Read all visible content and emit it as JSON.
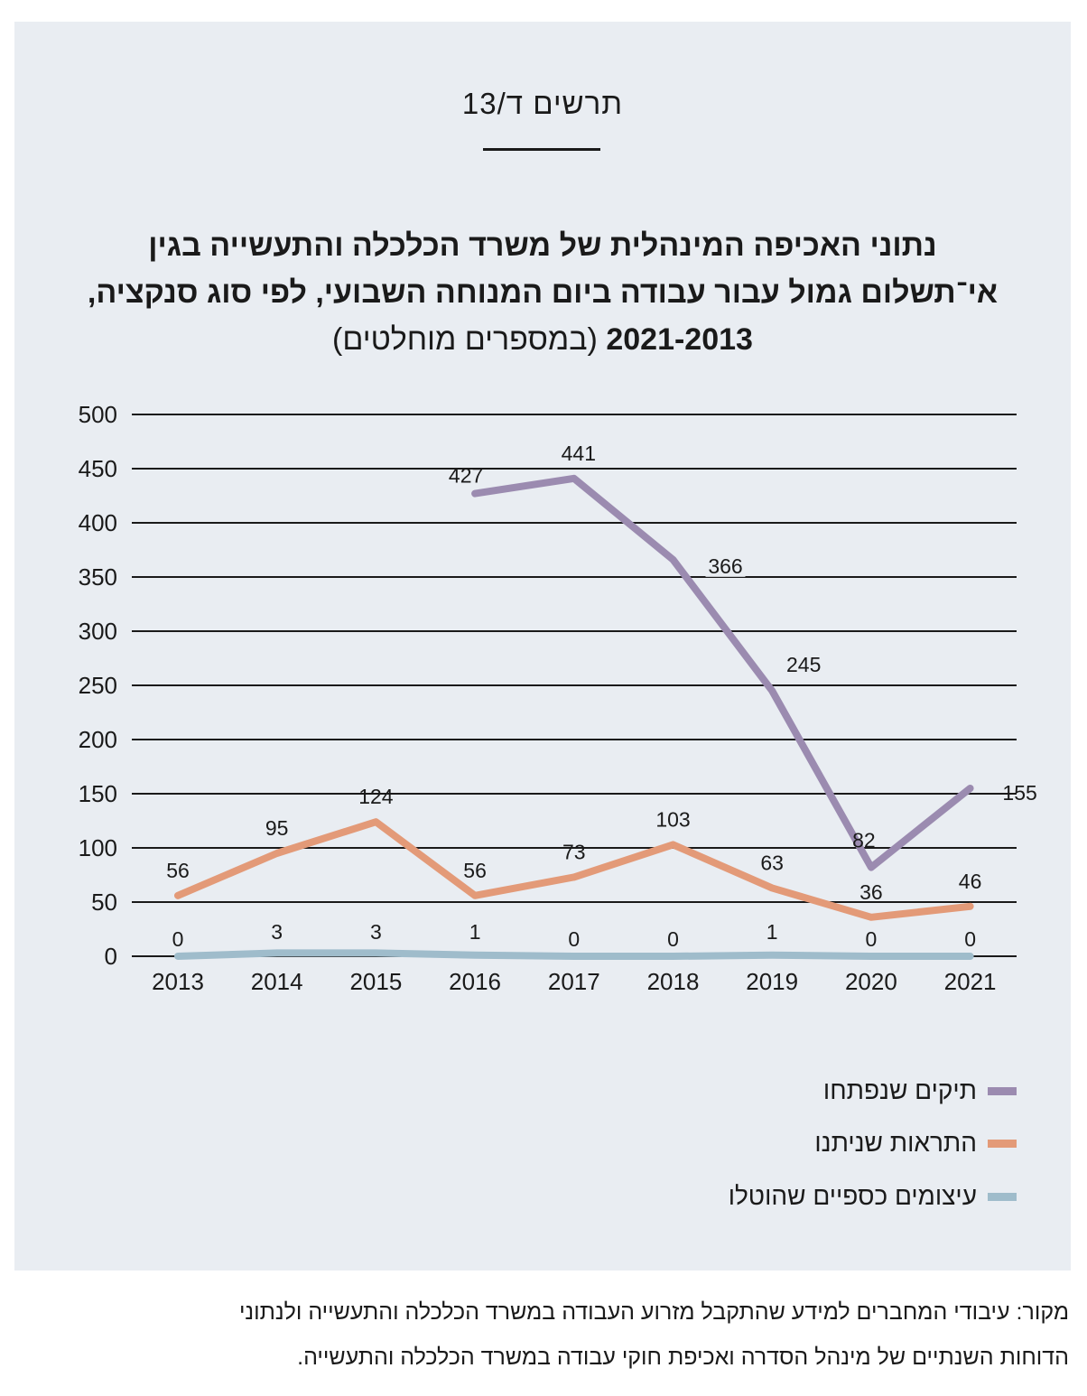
{
  "figure_label": "תרשים ד/13",
  "title": {
    "line1": "נתוני האכיפה המינהלית של משרד הכלכלה והתעשייה בגין",
    "line2": "אי־תשלום גמול עבור עבודה ביום המנוחה השבועי, לפי סוג סנקציה,",
    "line3_bold": "2021-2013",
    "line3_normal": "(במספרים מוחלטים)"
  },
  "chart_data": {
    "type": "line",
    "x": [
      2013,
      2014,
      2015,
      2016,
      2017,
      2018,
      2019,
      2020,
      2021
    ],
    "ylim": [
      0,
      500
    ],
    "yticks": [
      0,
      50,
      100,
      150,
      200,
      250,
      300,
      350,
      400,
      450,
      500
    ],
    "grid": true,
    "legend_position": "bottom-right",
    "series": [
      {
        "name": "תיקים שנפתחו",
        "color": "#9b8bb0",
        "values": [
          null,
          null,
          null,
          427,
          441,
          366,
          245,
          82,
          155
        ]
      },
      {
        "name": "התראות שניתנו",
        "color": "#e39a78",
        "values": [
          56,
          95,
          124,
          56,
          73,
          103,
          63,
          36,
          46
        ]
      },
      {
        "name": "עיצומים כספיים שהוטלו",
        "color": "#9fbccb",
        "values": [
          0,
          3,
          3,
          1,
          0,
          0,
          1,
          0,
          0
        ]
      }
    ]
  },
  "source": {
    "line1": "מקור: עיבודי המחברים למידע שהתקבל מזרוע העבודה במשרד הכלכלה והתעשייה ולנתוני",
    "line2": "הדוחות השנתיים של מינהל הסדרה ואכיפת חוקי עבודה במשרד הכלכלה והתעשייה."
  }
}
